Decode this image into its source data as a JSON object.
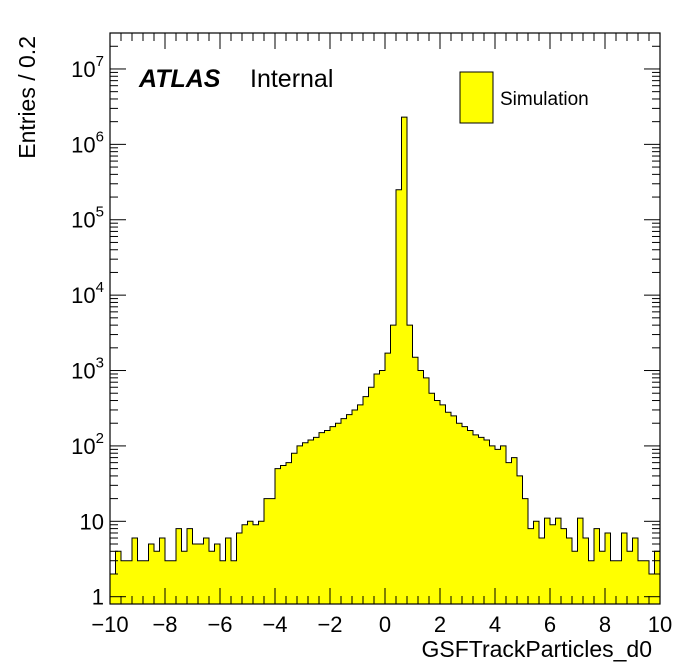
{
  "chart_data": {
    "type": "histogram",
    "xlabel": "GSFTrackParticles_d0",
    "ylabel": "Entries / 0.2",
    "xlim": [
      -10,
      10
    ],
    "ylim": [
      0.8,
      30000000.0
    ],
    "log_y": true,
    "bin_width": 0.2,
    "fill_color": "#ffff00",
    "line_color": "#000000",
    "x_ticks": [
      {
        "value": -10,
        "label": "−10"
      },
      {
        "value": -8,
        "label": "−8"
      },
      {
        "value": -6,
        "label": "−6"
      },
      {
        "value": -4,
        "label": "−4"
      },
      {
        "value": -2,
        "label": "−2"
      },
      {
        "value": 0,
        "label": "0"
      },
      {
        "value": 2,
        "label": "2"
      },
      {
        "value": 4,
        "label": "4"
      },
      {
        "value": 6,
        "label": "6"
      },
      {
        "value": 8,
        "label": "8"
      },
      {
        "value": 10,
        "label": "10"
      }
    ],
    "y_ticks": [
      {
        "value": 1,
        "mantissa": "1",
        "exponent": ""
      },
      {
        "value": 10,
        "mantissa": "10",
        "exponent": ""
      },
      {
        "value": 100,
        "mantissa": "10",
        "exponent": "2"
      },
      {
        "value": 1000,
        "mantissa": "10",
        "exponent": "3"
      },
      {
        "value": 10000,
        "mantissa": "10",
        "exponent": "4"
      },
      {
        "value": 100000,
        "mantissa": "10",
        "exponent": "5"
      },
      {
        "value": 1000000,
        "mantissa": "10",
        "exponent": "6"
      },
      {
        "value": 10000000,
        "mantissa": "10",
        "exponent": "7"
      }
    ],
    "labels": {
      "experiment": "ATLAS",
      "status": "Internal"
    },
    "legend": {
      "position": "top-right",
      "entries": [
        {
          "label": "Simulation",
          "color": "#ffff00"
        }
      ]
    },
    "series": [
      {
        "bin_edges_range": [
          -10,
          10
        ],
        "values": [
          2,
          4,
          3,
          3,
          6,
          3,
          3,
          5,
          4,
          6,
          3,
          3,
          8,
          4,
          8,
          5,
          5,
          6,
          4,
          5,
          3,
          6,
          3,
          7,
          9,
          10,
          9,
          10,
          20,
          20,
          50,
          55,
          60,
          80,
          100,
          110,
          120,
          130,
          150,
          160,
          180,
          200,
          230,
          260,
          300,
          350,
          450,
          600,
          900,
          1000,
          1700,
          4000,
          250000,
          2300000,
          4000,
          1500,
          1000,
          800,
          500,
          400,
          350,
          280,
          250,
          200,
          180,
          160,
          140,
          130,
          120,
          100,
          90,
          100,
          60,
          70,
          40,
          20,
          8,
          10,
          6,
          11,
          9,
          11,
          8,
          6,
          4,
          11,
          6,
          3,
          8,
          4,
          7,
          3,
          3,
          7,
          4,
          6,
          3,
          3,
          2,
          4
        ]
      }
    ]
  }
}
